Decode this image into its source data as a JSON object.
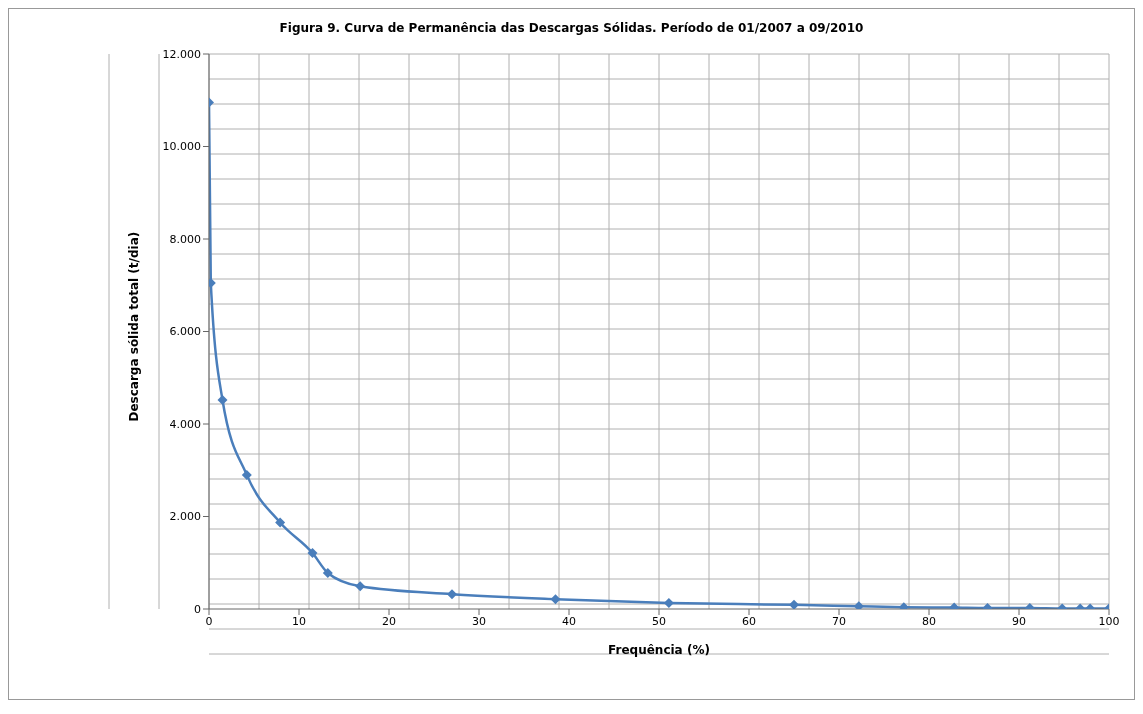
{
  "chart_data": {
    "type": "line",
    "title": "Figura 9. Curva de Permanência das Descargas Sólidas. Período de 01/2007 a 09/2010",
    "xlabel": "Frequência (%)",
    "ylabel": "Descarga sólida total (t/dia)",
    "x": [
      0,
      0.2,
      1.5,
      4.2,
      7.9,
      11.5,
      13.2,
      16.8,
      27,
      38.5,
      51.1,
      65,
      72.2,
      77.2,
      82.8,
      86.5,
      91.2,
      94.8,
      96.8,
      97.9,
      100
    ],
    "series": [
      {
        "color": "#4a7ebb",
        "values": [
          10950,
          7050,
          4520,
          2900,
          1870,
          1210,
          780,
          490,
          320,
          210,
          130,
          90,
          60,
          40,
          30,
          20,
          20,
          10,
          10,
          10,
          10
        ]
      }
    ],
    "xlim": [
      0,
      100
    ],
    "xticks": [
      0,
      10,
      20,
      30,
      40,
      50,
      60,
      70,
      80,
      90,
      100
    ],
    "ylim": [
      0,
      12000
    ],
    "yticks": [
      0,
      {
        "value": 2000,
        "label": "2.000"
      },
      {
        "value": 4000,
        "label": "4.000"
      },
      {
        "value": 6000,
        "label": "6.000"
      },
      {
        "value": 8000,
        "label": "8.000"
      },
      {
        "value": 10000,
        "label": "10.000"
      },
      {
        "value": 12000,
        "label": "12.000"
      }
    ],
    "grid": true,
    "marker": "diamond",
    "line_style": "solid"
  }
}
